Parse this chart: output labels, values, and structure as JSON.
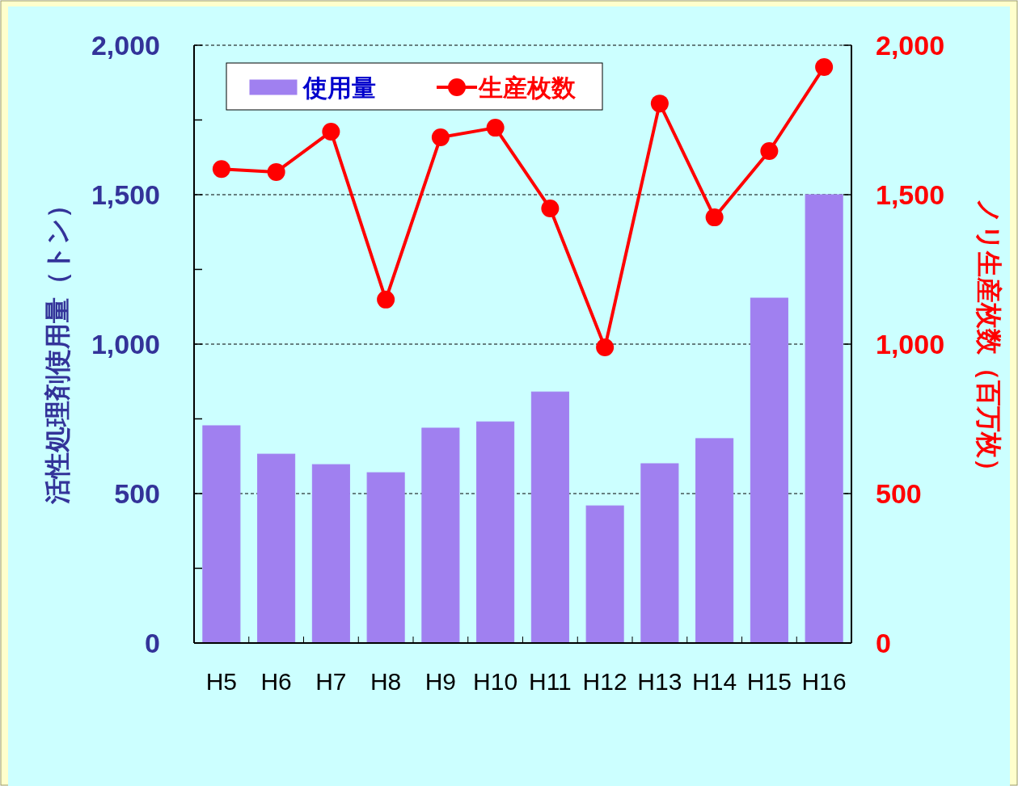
{
  "chart_data": {
    "type": "bar",
    "categories": [
      "H5",
      "H6",
      "H7",
      "H8",
      "H9",
      "H10",
      "H11",
      "H12",
      "H13",
      "H14",
      "H15",
      "H16"
    ],
    "series": [
      {
        "name": "使用量",
        "color": "#a080f0",
        "values": [
          727,
          632,
          597,
          570,
          719,
          740,
          840,
          459,
          600,
          684,
          1154,
          1500
        ]
      },
      {
        "name": "生産枚数",
        "type": "line",
        "axis": "y2",
        "color": "#ff0000",
        "values": [
          1586,
          1576,
          1711,
          1149,
          1692,
          1724,
          1454,
          989,
          1805,
          1424,
          1646,
          1927
        ]
      }
    ],
    "ylabel": "活性処理剤使用量（トン）",
    "y2label": "ノリ生産枚数（百万枚）",
    "ylim": [
      0,
      2000
    ],
    "yticks": [
      0,
      {
        "value": 250,
        "label": null
      },
      {
        "value": 500,
        "label": "500"
      },
      {
        "value": 750,
        "label": null
      },
      {
        "value": 1000,
        "label": "1,000"
      },
      {
        "value": 1250,
        "label": null
      },
      {
        "value": 1500,
        "label": "1,500"
      },
      {
        "value": 1750,
        "label": null
      },
      {
        "value": 2000,
        "label": "2,000"
      }
    ],
    "y2lim": [
      0,
      2000
    ],
    "y2ticks": [
      0,
      {
        "value": 500,
        "label": "500"
      },
      {
        "value": 1000,
        "label": "1,000"
      },
      {
        "value": 1500,
        "label": "1,500"
      },
      {
        "value": 2000,
        "label": "2,000"
      }
    ],
    "grid": "y",
    "legend": "top left",
    "marker": "circle",
    "line_style": "solid"
  }
}
